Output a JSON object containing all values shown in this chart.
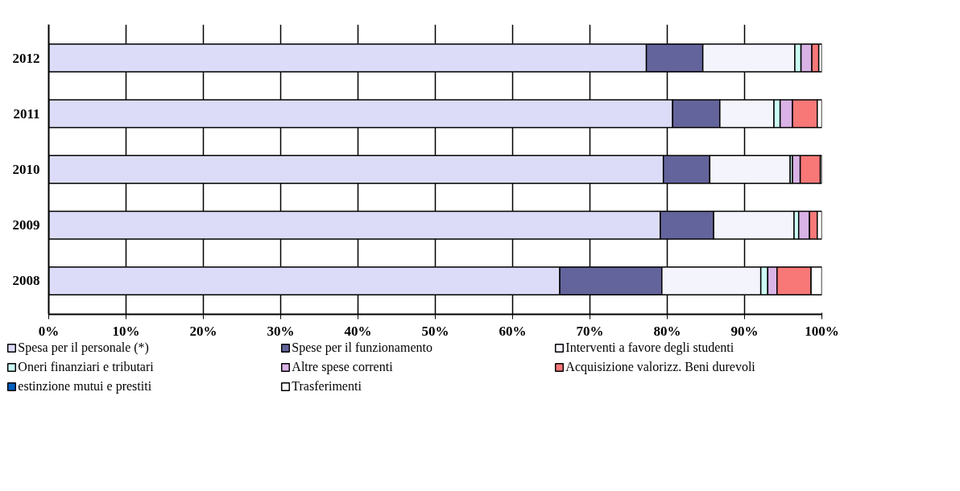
{
  "chart_data": {
    "type": "bar",
    "orientation": "horizontal",
    "stacked": true,
    "categories": [
      "2012",
      "2011",
      "2010",
      "2009",
      "2008"
    ],
    "series": [
      {
        "name": "Spesa per il personale (*)",
        "color": "#dcdcf8",
        "values": [
          77.3,
          80.7,
          79.5,
          79.1,
          66.1
        ]
      },
      {
        "name": "Spese per il funzionamento",
        "color": "#64649c",
        "values": [
          7.3,
          6.1,
          6.0,
          6.9,
          13.2
        ]
      },
      {
        "name": "Interventi a favore degli studenti",
        "color": "#f4f4fc",
        "values": [
          11.9,
          7.0,
          10.4,
          10.4,
          12.8
        ]
      },
      {
        "name": "Oneri finanziari e tributari",
        "color": "#ccfcf4",
        "values": [
          0.8,
          0.8,
          0.3,
          0.6,
          0.9
        ]
      },
      {
        "name": "Altre spese correnti",
        "color": "#d9b3e6",
        "values": [
          1.4,
          1.6,
          1.0,
          1.4,
          1.2
        ]
      },
      {
        "name": "Acquisizione valorizz. Beni durevoli",
        "color": "#f87878",
        "values": [
          0.9,
          3.2,
          2.6,
          1.0,
          4.4
        ]
      },
      {
        "name": "estinzione mutui e prestiti",
        "color": "#0060c0",
        "values": [
          0,
          0,
          0,
          0,
          0
        ]
      },
      {
        "name": "Trasferimenti",
        "color": "#ffffff",
        "values": [
          0.4,
          0.6,
          0.2,
          0.6,
          1.4
        ]
      }
    ],
    "xlim": [
      0,
      100
    ],
    "xticks": [
      {
        "value": 0,
        "label": "0%"
      },
      {
        "value": 10,
        "label": "10%"
      },
      {
        "value": 20,
        "label": "20%"
      },
      {
        "value": 30,
        "label": "30%"
      },
      {
        "value": 40,
        "label": "40%"
      },
      {
        "value": 50,
        "label": "50%"
      },
      {
        "value": 60,
        "label": "60%"
      },
      {
        "value": 70,
        "label": "70%"
      },
      {
        "value": 80,
        "label": "80%"
      },
      {
        "value": 90,
        "label": "90%"
      },
      {
        "value": 100,
        "label": "100%"
      }
    ],
    "grid": "x",
    "legend": "bottom"
  }
}
